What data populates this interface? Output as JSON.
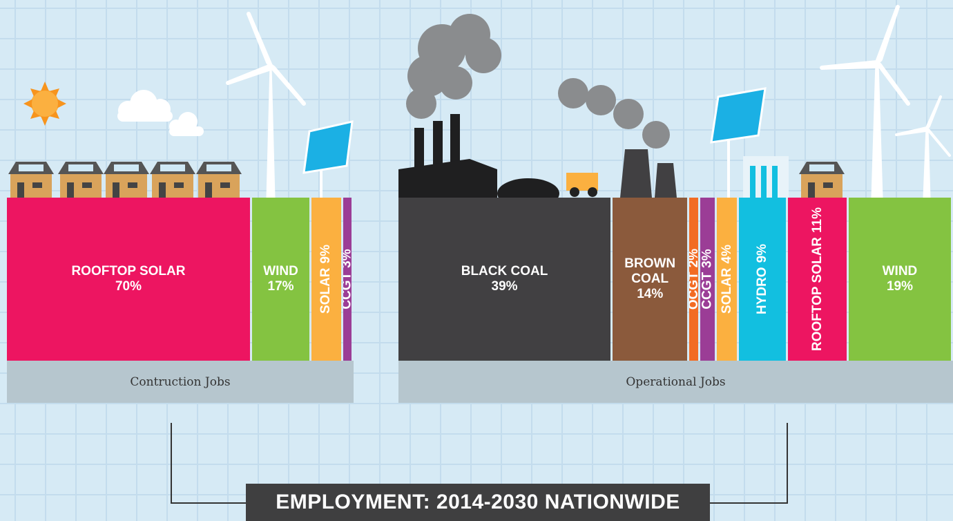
{
  "title": "EMPLOYMENT: 2014-2030 NATIONWIDE",
  "chart_data": [
    {
      "type": "bar",
      "stacked": true,
      "orientation": "horizontal",
      "title": "Contruction Jobs",
      "categories": [
        "ROOFTOP SOLAR",
        "WIND",
        "SOLAR",
        "CCGT"
      ],
      "values": [
        70,
        17,
        9,
        3
      ],
      "value_labels": [
        "70%",
        "17%",
        "9%",
        "3%"
      ],
      "colors": [
        "#ed1561",
        "#84c341",
        "#fbb040",
        "#9b3d96"
      ],
      "label_orientation": [
        "horizontal",
        "horizontal",
        "vertical",
        "vertical"
      ]
    },
    {
      "type": "bar",
      "stacked": true,
      "orientation": "horizontal",
      "title": "Operational Jobs",
      "categories": [
        "BLACK COAL",
        "BROWN COAL",
        "OCGT",
        "CCGT",
        "SOLAR",
        "HYDRO",
        "ROOFTOP SOLAR",
        "WIND"
      ],
      "values": [
        39,
        14,
        2,
        3,
        4,
        9,
        11,
        19
      ],
      "value_labels": [
        "39%",
        "14%",
        "2%",
        "3%",
        "4%",
        "9%",
        "11%",
        "19%"
      ],
      "colors": [
        "#414042",
        "#8b5a3c",
        "#f26c23",
        "#9b3d96",
        "#fbb040",
        "#12bfe0",
        "#ed1561",
        "#84c341"
      ],
      "label_orientation": [
        "horizontal",
        "horizontal",
        "vertical",
        "vertical",
        "vertical",
        "vertical",
        "vertical",
        "horizontal"
      ]
    }
  ]
}
